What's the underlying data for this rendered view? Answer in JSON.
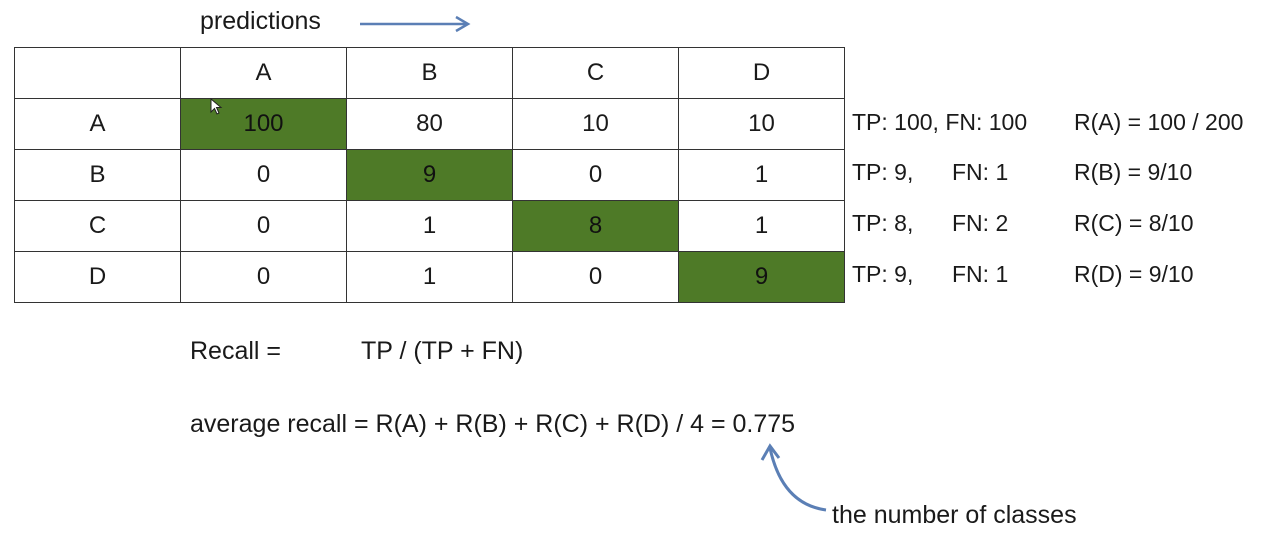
{
  "predictions_label": "predictions",
  "colors": {
    "diagonal_fill": "#4e7a27",
    "arrow": "#5b7fb5",
    "border": "#333333"
  },
  "matrix": {
    "column_headers": [
      "",
      "A",
      "B",
      "C",
      "D"
    ],
    "rows": [
      {
        "label": "A",
        "cells": [
          "100",
          "80",
          "10",
          "10"
        ]
      },
      {
        "label": "B",
        "cells": [
          "0",
          "9",
          "0",
          "1"
        ]
      },
      {
        "label": "C",
        "cells": [
          "0",
          "1",
          "8",
          "1"
        ]
      },
      {
        "label": "D",
        "cells": [
          "0",
          "1",
          "0",
          "9"
        ]
      }
    ]
  },
  "stats": [
    {
      "tp": "TP: 100, FN: 100",
      "fn": "",
      "recall": "R(A) = 100 / 200"
    },
    {
      "tp": "TP: 9,",
      "fn": "FN: 1",
      "recall": "R(B) = 9/10"
    },
    {
      "tp": "TP: 8,",
      "fn": "FN: 2",
      "recall": "R(C) = 8/10"
    },
    {
      "tp": "TP: 9,",
      "fn": "FN: 1",
      "recall": "R(D) = 9/10"
    }
  ],
  "recall_label": "Recall =",
  "recall_formula": "TP  / (TP + FN)",
  "average_recall": "average recall = R(A) + R(B) + R(C) + R(D) / 4 = 0.775",
  "classes_note": "the number of classes"
}
